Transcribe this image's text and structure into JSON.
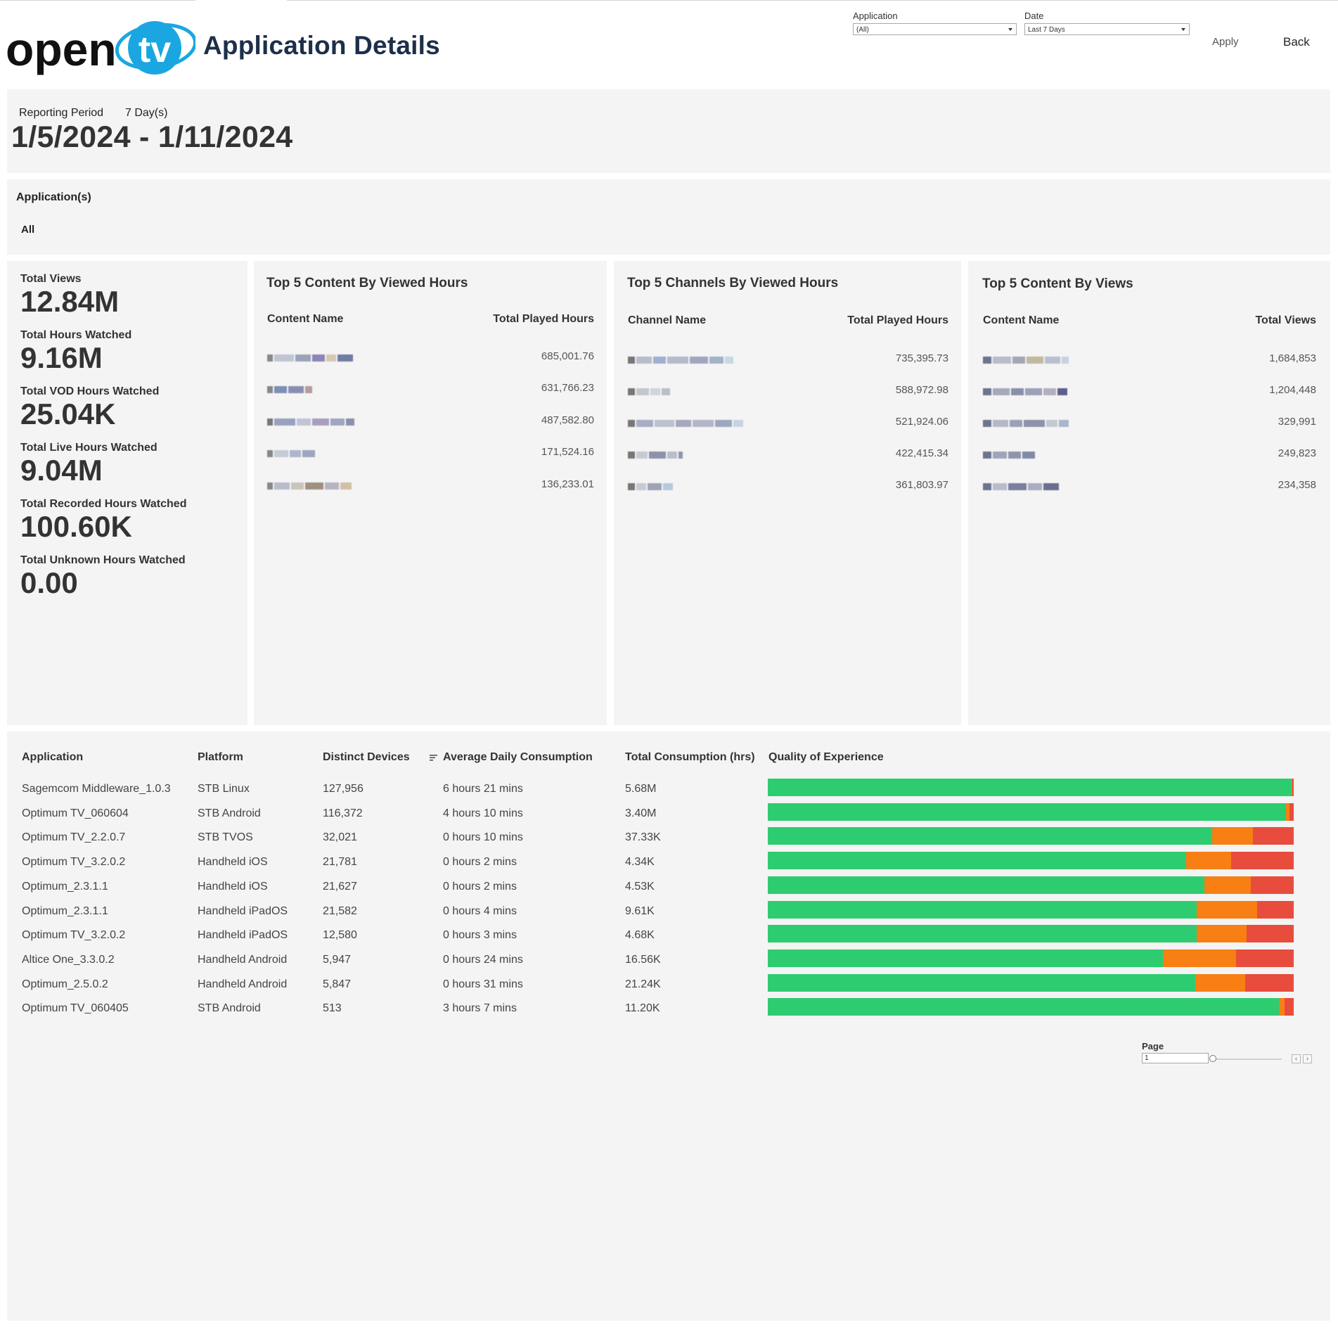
{
  "header": {
    "logo_text_open": "open",
    "logo_text_tv": "tv",
    "title": "Application Details"
  },
  "filters": {
    "application": {
      "label": "Application",
      "value": "(All)"
    },
    "date": {
      "label": "Date",
      "value": "Last 7 Days"
    },
    "apply_label": "Apply",
    "back_label": "Back"
  },
  "period": {
    "label": "Reporting Period",
    "days": "7 Day(s)",
    "range": "1/5/2024 - 1/11/2024"
  },
  "applications": {
    "label": "Application(s)",
    "value": "All"
  },
  "kpis": [
    {
      "label": "Total Views",
      "value": "12.84M"
    },
    {
      "label": "Total Hours Watched",
      "value": "9.16M"
    },
    {
      "label": "Total VOD Hours Watched",
      "value": "25.04K"
    },
    {
      "label": "Total Live Hours Watched",
      "value": "9.04M"
    },
    {
      "label": "Total Recorded Hours Watched",
      "value": "100.60K"
    },
    {
      "label": "Total Unknown Hours Watched",
      "value": "0.00"
    }
  ],
  "top_content_hours": {
    "title": "Top 5 Content By Viewed Hours",
    "col_name": "Content Name",
    "col_value": "Total Played Hours",
    "rows": [
      "685,001.76",
      "631,766.23",
      "487,582.80",
      "171,524.16",
      "136,233.01"
    ]
  },
  "top_channels_hours": {
    "title": "Top 5 Channels By Viewed Hours",
    "col_name": "Channel Name",
    "col_value": "Total Played Hours",
    "rows": [
      "735,395.73",
      "588,972.98",
      "521,924.06",
      "422,415.34",
      "361,803.97"
    ]
  },
  "top_content_views": {
    "title": "Top 5 Content By Views",
    "col_name": "Content Name",
    "col_value": "Total Views",
    "rows": [
      "1,684,853",
      "1,204,448",
      "329,991",
      "249,823",
      "234,358"
    ]
  },
  "app_table": {
    "headers": {
      "application": "Application",
      "platform": "Platform",
      "devices": "Distinct Devices",
      "avg": "Average Daily Consumption",
      "total": "Total Consumption (hrs)",
      "qoe": "Quality of Experience"
    },
    "rows": [
      {
        "application": "Sagemcom Middleware_1.0.3",
        "platform": "STB Linux",
        "devices": "127,956",
        "avg": "6 hours 21 mins",
        "total": "5.68M",
        "qoe": [
          99.6,
          0.2,
          0.2
        ]
      },
      {
        "application": "Optimum TV_060604",
        "platform": "STB Android",
        "devices": "116,372",
        "avg": "4 hours 10 mins",
        "total": "3.40M",
        "qoe": [
          98.5,
          0.7,
          0.8
        ]
      },
      {
        "application": "Optimum TV_2.2.0.7",
        "platform": "STB TVOS",
        "devices": "32,021",
        "avg": "0 hours 10 mins",
        "total": "37.33K",
        "qoe": [
          84.5,
          7.7,
          7.8
        ]
      },
      {
        "application": "Optimum TV_3.2.0.2",
        "platform": "Handheld iOS",
        "devices": "21,781",
        "avg": "0 hours 2 mins",
        "total": "4.34K",
        "qoe": [
          79.6,
          8.5,
          11.9
        ]
      },
      {
        "application": "Optimum_2.3.1.1",
        "platform": "Handheld iOS",
        "devices": "21,627",
        "avg": "0 hours 2 mins",
        "total": "4.53K",
        "qoe": [
          83.0,
          8.9,
          8.1
        ]
      },
      {
        "application": "Optimum_2.3.1.1",
        "platform": "Handheld iPadOS",
        "devices": "21,582",
        "avg": "0 hours 4 mins",
        "total": "9.61K",
        "qoe": [
          81.6,
          11.5,
          6.9
        ]
      },
      {
        "application": "Optimum TV_3.2.0.2",
        "platform": "Handheld iPadOS",
        "devices": "12,580",
        "avg": "0 hours 3 mins",
        "total": "4.68K",
        "qoe": [
          81.6,
          9.4,
          9.0
        ]
      },
      {
        "application": "Altice One_3.3.0.2",
        "platform": "Handheld Android",
        "devices": "5,947",
        "avg": "0 hours 24 mins",
        "total": "16.56K",
        "qoe": [
          75.1,
          14.0,
          10.9
        ]
      },
      {
        "application": "Optimum_2.5.0.2",
        "platform": "Handheld Android",
        "devices": "5,847",
        "avg": "0 hours 31 mins",
        "total": "21.24K",
        "qoe": [
          81.3,
          9.5,
          9.2
        ]
      },
      {
        "application": "Optimum TV_060405",
        "platform": "STB Android",
        "devices": "513",
        "avg": "3 hours 7 mins",
        "total": "11.20K",
        "qoe": [
          97.2,
          1.1,
          1.7
        ]
      }
    ]
  },
  "qoe_colors": [
    "#2ecc71",
    "#f77f14",
    "#e84c3d"
  ],
  "pager": {
    "label": "Page",
    "value": "1"
  }
}
